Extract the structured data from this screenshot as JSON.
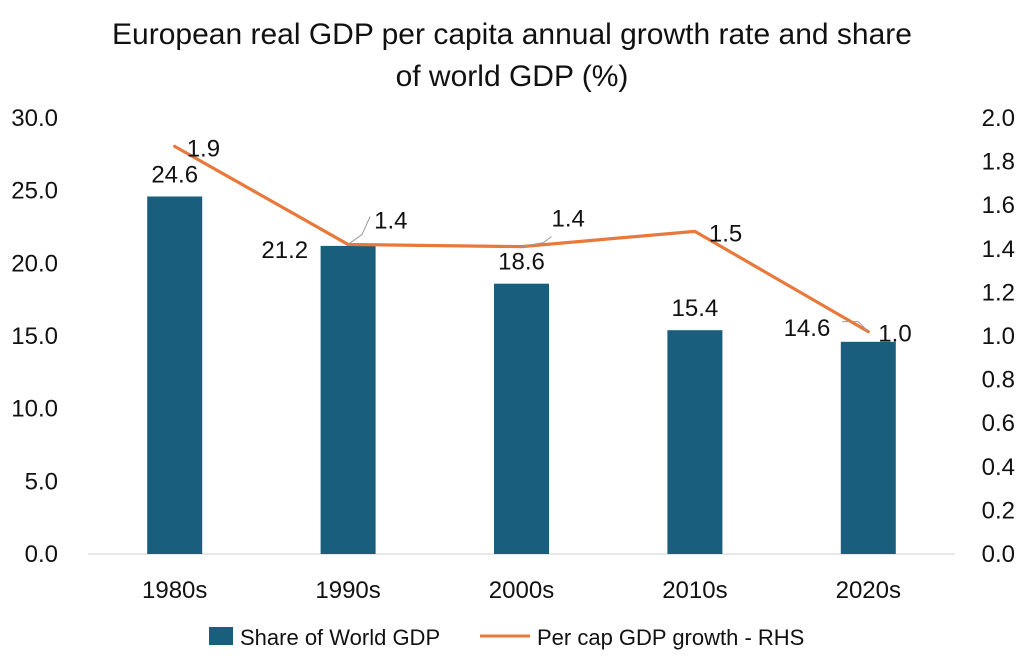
{
  "chart_data": {
    "type": "bar",
    "title_lines": [
      "European real GDP per capita annual growth rate and share",
      "of world GDP (%)"
    ],
    "categories": [
      "1980s",
      "1990s",
      "2000s",
      "2010s",
      "2020s"
    ],
    "series": [
      {
        "name": "Share of World GDP",
        "type": "bar",
        "axis": "left",
        "values": [
          24.6,
          21.2,
          18.6,
          15.4,
          14.6
        ],
        "labels": [
          "24.6",
          "21.2",
          "18.6",
          "15.4",
          "14.6"
        ],
        "color": "#1a5e7e"
      },
      {
        "name": "Per cap GDP growth - RHS",
        "type": "line",
        "axis": "right",
        "values": [
          1.87,
          1.42,
          1.41,
          1.48,
          1.02
        ],
        "labels": [
          "1.9",
          "1.4",
          "1.4",
          "1.5",
          "1.0"
        ],
        "color": "#e8793a"
      }
    ],
    "y_left": {
      "min": 0,
      "max": 30,
      "ticks": [
        "0.0",
        "5.0",
        "10.0",
        "15.0",
        "20.0",
        "25.0",
        "30.0"
      ]
    },
    "y_right": {
      "min": 0,
      "max": 2,
      "ticks": [
        "0.0",
        "0.2",
        "0.4",
        "0.6",
        "0.8",
        "1.0",
        "1.2",
        "1.4",
        "1.6",
        "1.8",
        "2.0"
      ]
    },
    "grid": false,
    "legend_position": "bottom"
  }
}
